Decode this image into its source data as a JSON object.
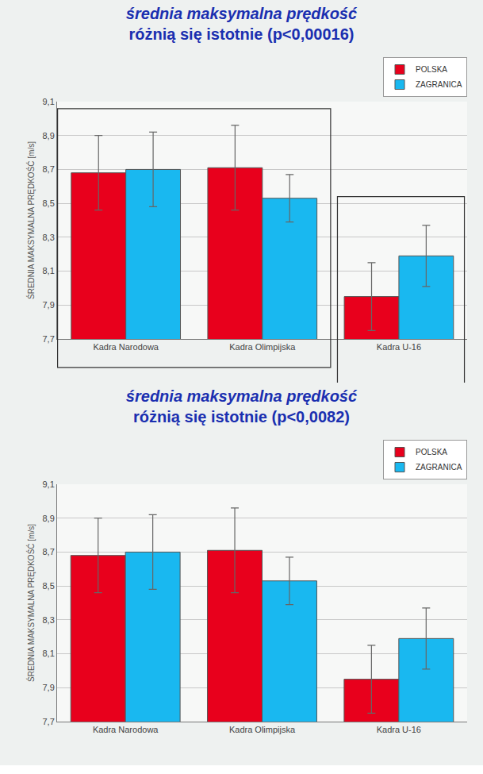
{
  "chart_data": [
    {
      "type": "bar",
      "title": "średnia maksymalna prędkość",
      "subtitle": "różnią się istotnie (p<0,00016)",
      "y_label": "ŚREDNIA MAKSYMALNA PRĘDKOŚĆ [m/s]",
      "categories": [
        "Kadra Narodowa",
        "Kadra Olimpijska",
        "Kadra U-16"
      ],
      "series": [
        {
          "name": "POLSKA",
          "color": "#e8001c",
          "values": [
            8.68,
            8.71,
            7.95
          ],
          "errors": [
            0.22,
            0.25,
            0.2
          ]
        },
        {
          "name": "ZAGRANICA",
          "color": "#19b8f0",
          "values": [
            8.7,
            8.53,
            8.19
          ],
          "errors": [
            0.22,
            0.14,
            0.18
          ]
        }
      ],
      "ylim": [
        7.7,
        9.1
      ],
      "yticks": [
        {
          "value": 7.7,
          "label": "7,7"
        },
        {
          "value": 7.9,
          "label": "7,9"
        },
        {
          "value": 8.1,
          "label": "8,1"
        },
        {
          "value": 8.3,
          "label": "8,3"
        },
        {
          "value": 8.5,
          "label": "8,5"
        },
        {
          "value": 8.7,
          "label": "8,7"
        },
        {
          "value": 8.9,
          "label": "8,9"
        },
        {
          "value": 9.1,
          "label": "9,1"
        }
      ],
      "grid": true,
      "legend": "top right"
    },
    {
      "type": "bar",
      "title": "średnia maksymalna prędkość",
      "subtitle": "różnią się istotnie (p<0,0082)",
      "y_label": "ŚREDNIA MAKSYMALNA PRĘDKOŚĆ [m/s]",
      "categories": [
        "Kadra Narodowa",
        "Kadra Olimpijska",
        "Kadra U-16"
      ],
      "series": [
        {
          "name": "POLSKA",
          "color": "#e8001c",
          "values": [
            8.68,
            8.71,
            7.95
          ],
          "errors": [
            0.22,
            0.25,
            0.2
          ]
        },
        {
          "name": "ZAGRANICA",
          "color": "#19b8f0",
          "values": [
            8.7,
            8.53,
            8.19
          ],
          "errors": [
            0.22,
            0.14,
            0.18
          ]
        }
      ],
      "ylim": [
        7.7,
        9.1
      ],
      "yticks": [
        {
          "value": 7.7,
          "label": "7,7"
        },
        {
          "value": 7.9,
          "label": "7,9"
        },
        {
          "value": 8.1,
          "label": "8,1"
        },
        {
          "value": 8.3,
          "label": "8,3"
        },
        {
          "value": 8.5,
          "label": "8,5"
        },
        {
          "value": 8.7,
          "label": "8,7"
        },
        {
          "value": 8.9,
          "label": "8,9"
        },
        {
          "value": 9.1,
          "label": "9,1"
        }
      ],
      "grid": true,
      "legend": "top right"
    }
  ]
}
